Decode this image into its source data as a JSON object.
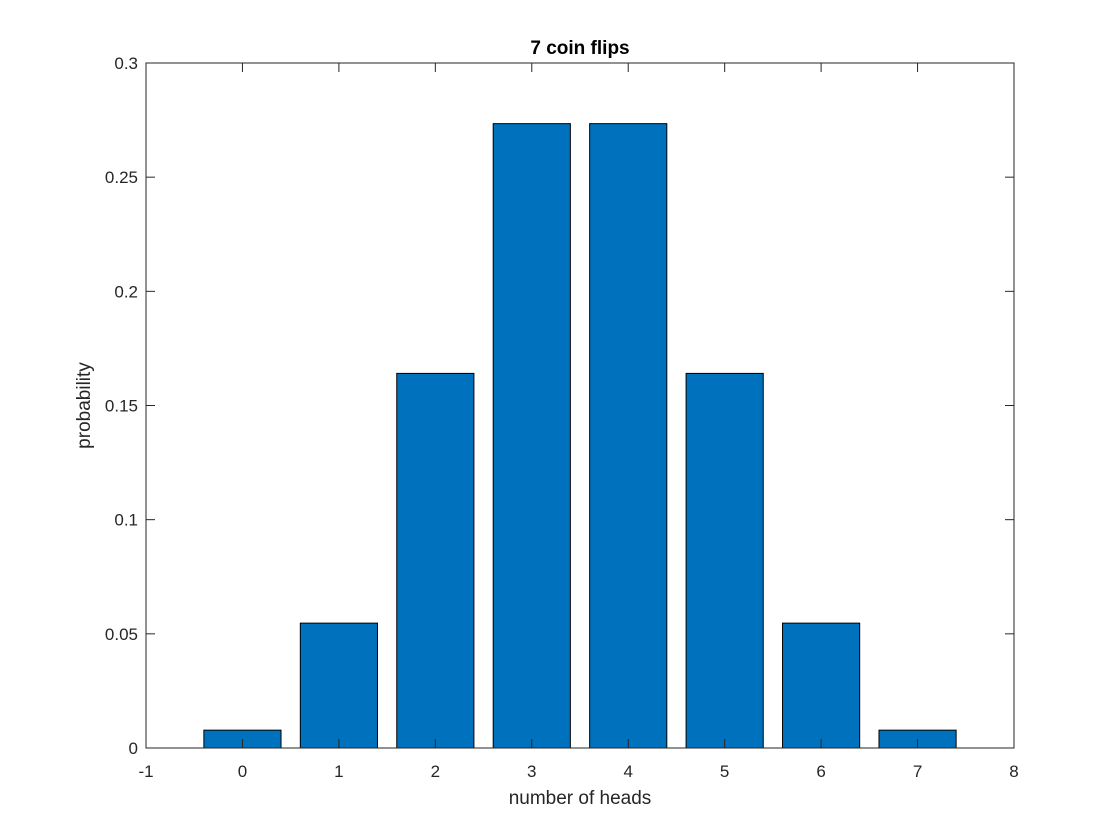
{
  "chart_data": {
    "type": "bar",
    "title": "7 coin flips",
    "xlabel": "number of heads",
    "ylabel": "probability",
    "categories": [
      "0",
      "1",
      "2",
      "3",
      "4",
      "5",
      "6",
      "7"
    ],
    "x": [
      0,
      1,
      2,
      3,
      4,
      5,
      6,
      7
    ],
    "values": [
      0.0078125,
      0.0546875,
      0.1640625,
      0.2734375,
      0.2734375,
      0.1640625,
      0.0546875,
      0.0078125
    ],
    "xlim": [
      -1,
      8
    ],
    "ylim": [
      0,
      0.3
    ],
    "xticks": [
      "-1",
      "0",
      "1",
      "2",
      "3",
      "4",
      "5",
      "6",
      "7",
      "8"
    ],
    "yticks": [
      "0",
      "0.05",
      "0.1",
      "0.15",
      "0.2",
      "0.25",
      "0.3"
    ],
    "grid": false,
    "bar_color": "#0072BD",
    "edge_color": "#000000"
  }
}
